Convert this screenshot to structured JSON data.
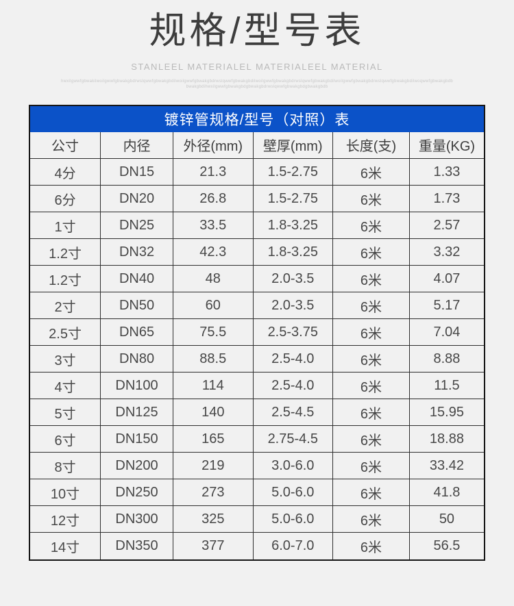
{
  "page": {
    "title": "规格/型号表",
    "subtitle": "STANLEEL MATERIALEL MATERIALEEL MATERIAL",
    "fine_print_line1": "hwxilgwwfgbwakilwoilgwwfgbwakgbdrwslqwwfgbwakgbdilwoilgwwfgbwakgbdrwslqwwfgbwakgbdilwoilgwwfgbwakgbdrwslqwwfgbwakgbdilwoilgwwfgbwakgbdrwslqwwfgbwakgbdilwoqwwfgbwakgbdb",
    "fine_print_line2": "bwakgbdihwxilgwwfgbwakgbdgbwakgbdrwslqwwfgbwakgbdgbwakgbdb"
  },
  "table": {
    "band_title": "镀锌管规格/型号（对照）表",
    "columns": [
      "公寸",
      "内径",
      "外径(mm)",
      "壁厚(mm)",
      "长度(支)",
      "重量(KG)"
    ],
    "rows": [
      [
        "4分",
        "DN15",
        "21.3",
        "1.5-2.75",
        "6米",
        "1.33"
      ],
      [
        "6分",
        "DN20",
        "26.8",
        "1.5-2.75",
        "6米",
        "1.73"
      ],
      [
        "1寸",
        "DN25",
        "33.5",
        "1.8-3.25",
        "6米",
        "2.57"
      ],
      [
        "1.2寸",
        "DN32",
        "42.3",
        "1.8-3.25",
        "6米",
        "3.32"
      ],
      [
        "1.2寸",
        "DN40",
        "48",
        "2.0-3.5",
        "6米",
        "4.07"
      ],
      [
        "2寸",
        "DN50",
        "60",
        "2.0-3.5",
        "6米",
        "5.17"
      ],
      [
        "2.5寸",
        "DN65",
        "75.5",
        "2.5-3.75",
        "6米",
        "7.04"
      ],
      [
        "3寸",
        "DN80",
        "88.5",
        "2.5-4.0",
        "6米",
        "8.88"
      ],
      [
        "4寸",
        "DN100",
        "114",
        "2.5-4.0",
        "6米",
        "11.5"
      ],
      [
        "5寸",
        "DN125",
        "140",
        "2.5-4.5",
        "6米",
        "15.95"
      ],
      [
        "6寸",
        "DN150",
        "165",
        "2.75-4.5",
        "6米",
        "18.88"
      ],
      [
        "8寸",
        "DN200",
        "219",
        "3.0-6.0",
        "6米",
        "33.42"
      ],
      [
        "10寸",
        "DN250",
        "273",
        "5.0-6.0",
        "6米",
        "41.8"
      ],
      [
        "12寸",
        "DN300",
        "325",
        "5.0-6.0",
        "6米",
        "50"
      ],
      [
        "14寸",
        "DN350",
        "377",
        "6.0-7.0",
        "6米",
        "56.5"
      ]
    ],
    "column_widths_pct": [
      15.5,
      16.0,
      17.6,
      17.6,
      16.9,
      16.4
    ]
  },
  "colors": {
    "band_background": "#0b52c8",
    "band_text": "#ffffff",
    "page_background": "#f1f1f1",
    "border": "#2e2e2e",
    "title_text": "#3d3d3d",
    "cell_text": "#474747"
  }
}
